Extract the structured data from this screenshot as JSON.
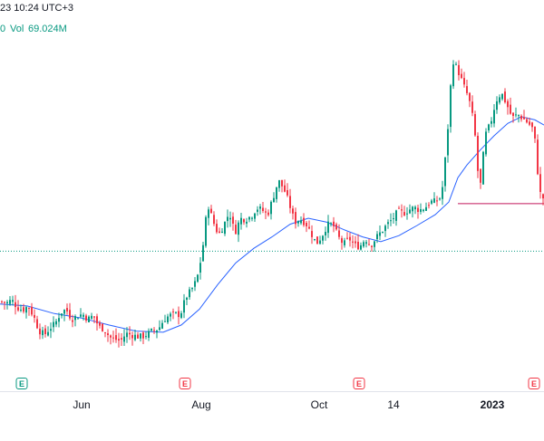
{
  "header": {
    "timestamp_fragment": "23 10:24 UTC+3",
    "volume_prefix_fragment": "0",
    "volume_label": "Vol",
    "volume_value": "69.024M"
  },
  "colors": {
    "up": "#089981",
    "down": "#f23645",
    "ma": "#2962ff",
    "level_line": "#c2185b",
    "dotted_line": "#089981"
  },
  "x_axis": {
    "labels": [
      {
        "text": "Jun",
        "bold": false
      },
      {
        "text": "Aug",
        "bold": false
      },
      {
        "text": "Oct",
        "bold": false
      },
      {
        "text": "14",
        "bold": false
      },
      {
        "text": "2023",
        "bold": true
      }
    ]
  },
  "earnings_markers": [
    {
      "label": "E",
      "color": "green"
    },
    {
      "label": "E",
      "color": "red"
    },
    {
      "label": "E",
      "color": "red"
    },
    {
      "label": "E",
      "color": "red"
    }
  ],
  "chart_data": {
    "type": "candlestick",
    "title": "",
    "x_axis_labels": [
      "Jun",
      "Aug",
      "Oct",
      "14",
      "2023"
    ],
    "price_range": [
      0,
      100
    ],
    "y_axis_labels_visible": false,
    "series": [
      {
        "name": "price",
        "close_path": [
          [
            0,
            22.0
          ],
          [
            6,
            21.5
          ],
          [
            12,
            22.5
          ],
          [
            18,
            20.2
          ],
          [
            24,
            19.3
          ],
          [
            30,
            20.6
          ],
          [
            36,
            17.4
          ],
          [
            42,
            12.9
          ],
          [
            48,
            11.5
          ],
          [
            54,
            13.6
          ],
          [
            60,
            15.1
          ],
          [
            66,
            18.6
          ],
          [
            72,
            19.5
          ],
          [
            78,
            16.5
          ],
          [
            84,
            17.3
          ],
          [
            90,
            18.1
          ],
          [
            96,
            16.4
          ],
          [
            102,
            17.6
          ],
          [
            108,
            14.0
          ],
          [
            114,
            13.3
          ],
          [
            120,
            10.7
          ],
          [
            126,
            10.1
          ],
          [
            132,
            9.5
          ],
          [
            138,
            11.9
          ],
          [
            144,
            11.5
          ],
          [
            150,
            11.0
          ],
          [
            156,
            10.9
          ],
          [
            162,
            11.8
          ],
          [
            168,
            12.9
          ],
          [
            174,
            13.5
          ],
          [
            180,
            16.4
          ],
          [
            186,
            17.6
          ],
          [
            192,
            18.0
          ],
          [
            198,
            17.9
          ],
          [
            204,
            23.3
          ],
          [
            210,
            25.6
          ],
          [
            216,
            28.8
          ],
          [
            222,
            37.3
          ],
          [
            228,
            53.0
          ],
          [
            234,
            47.3
          ],
          [
            240,
            43.0
          ],
          [
            246,
            46.2
          ],
          [
            252,
            50.2
          ],
          [
            258,
            43.6
          ],
          [
            264,
            48.2
          ],
          [
            270,
            48.0
          ],
          [
            276,
            48.9
          ],
          [
            282,
            51.5
          ],
          [
            288,
            50.9
          ],
          [
            294,
            49.3
          ],
          [
            300,
            54.6
          ],
          [
            306,
            60.2
          ],
          [
            312,
            57.6
          ],
          [
            318,
            52.9
          ],
          [
            324,
            47.0
          ],
          [
            330,
            48.1
          ],
          [
            336,
            46.8
          ],
          [
            342,
            43.7
          ],
          [
            348,
            40.2
          ],
          [
            354,
            42.7
          ],
          [
            360,
            46.2
          ],
          [
            366,
            46.4
          ],
          [
            372,
            42.4
          ],
          [
            378,
            40.0
          ],
          [
            384,
            42.0
          ],
          [
            390,
            39.7
          ],
          [
            396,
            39.4
          ],
          [
            402,
            41.9
          ],
          [
            408,
            39.7
          ],
          [
            414,
            42.2
          ],
          [
            420,
            44.2
          ],
          [
            426,
            46.3
          ],
          [
            432,
            48.1
          ],
          [
            438,
            50.5
          ],
          [
            444,
            49.9
          ],
          [
            450,
            51.0
          ],
          [
            456,
            51.6
          ],
          [
            462,
            50.9
          ],
          [
            468,
            51.7
          ],
          [
            474,
            53.5
          ],
          [
            480,
            53.5
          ],
          [
            486,
            55.2
          ],
          [
            492,
            72.6
          ],
          [
            498,
            98.4
          ],
          [
            504,
            95.0
          ],
          [
            510,
            90.4
          ],
          [
            516,
            86.2
          ],
          [
            522,
            77.8
          ],
          [
            528,
            55.9
          ],
          [
            534,
            74.3
          ],
          [
            540,
            78.2
          ],
          [
            546,
            85.3
          ],
          [
            552,
            87.9
          ],
          [
            558,
            84.1
          ],
          [
            564,
            79.9
          ],
          [
            570,
            81.0
          ],
          [
            576,
            79.7
          ],
          [
            582,
            78.2
          ],
          [
            588,
            76.0
          ],
          [
            594,
            56.5
          ],
          [
            600,
            53.8
          ]
        ]
      },
      {
        "name": "moving_average",
        "path": [
          [
            0,
            21.2
          ],
          [
            30,
            20.6
          ],
          [
            60,
            18.2
          ],
          [
            90,
            16.8
          ],
          [
            120,
            14.6
          ],
          [
            150,
            12.7
          ],
          [
            180,
            12.3
          ],
          [
            200,
            14.6
          ],
          [
            220,
            19.6
          ],
          [
            240,
            27.3
          ],
          [
            260,
            34.2
          ],
          [
            280,
            38.8
          ],
          [
            300,
            42.4
          ],
          [
            320,
            46.4
          ],
          [
            340,
            48.3
          ],
          [
            360,
            47.1
          ],
          [
            380,
            44.6
          ],
          [
            400,
            42.4
          ],
          [
            420,
            40.9
          ],
          [
            440,
            42.8
          ],
          [
            460,
            46.0
          ],
          [
            480,
            49.4
          ],
          [
            495,
            53.4
          ],
          [
            505,
            61.1
          ],
          [
            515,
            65.1
          ],
          [
            530,
            69.9
          ],
          [
            545,
            74.3
          ],
          [
            560,
            78.2
          ],
          [
            575,
            80.3
          ],
          [
            590,
            79.3
          ],
          [
            600,
            77.7
          ]
        ]
      }
    ],
    "reference_lines": [
      {
        "name": "dotted_level",
        "value": 37.9,
        "style": "dotted",
        "x_range": [
          0,
          600
        ]
      },
      {
        "name": "horizontal_level",
        "value": 52.9,
        "style": "solid",
        "x_range": [
          505,
          600
        ]
      }
    ]
  }
}
